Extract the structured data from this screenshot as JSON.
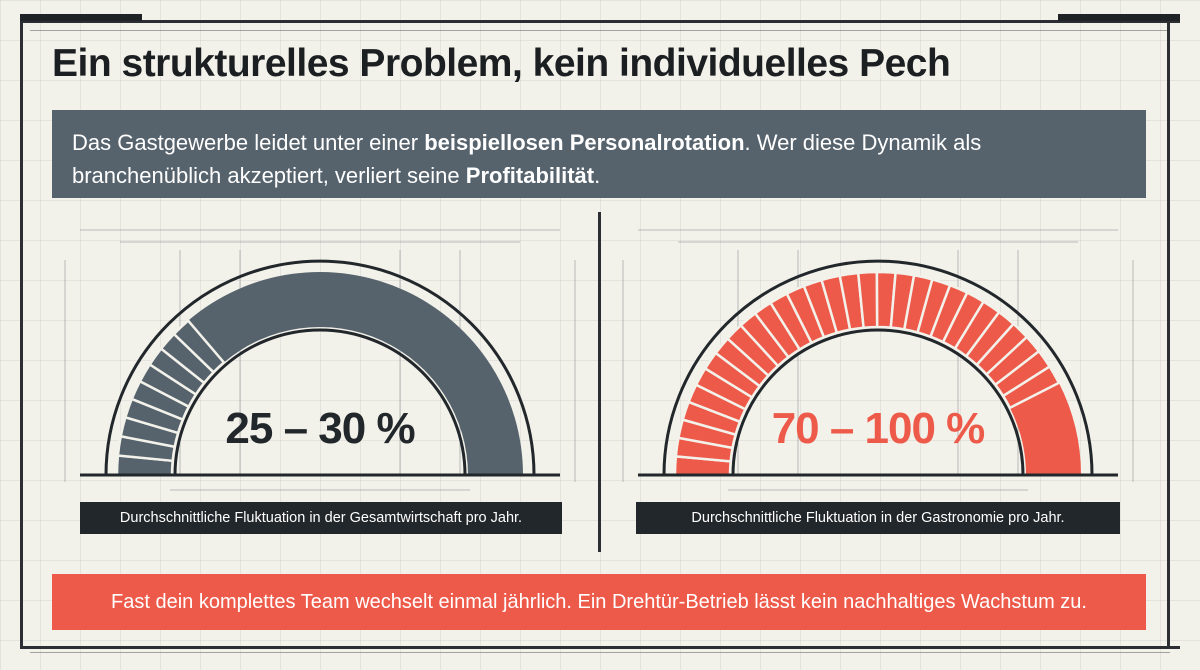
{
  "title": "Ein strukturelles Problem, kein individuelles Pech",
  "intro": {
    "part1": "Das Gastgewerbe leidet unter einer ",
    "bold1": "beispiellosen Personalrotation",
    "part2": ". Wer diese Dynamik als branchenüblich akzeptiert, verliert seine ",
    "bold2": "Profitabilität",
    "part3": "."
  },
  "chart_data": [
    {
      "type": "gauge",
      "value_label": "25 – 30 %",
      "range": [
        25,
        30
      ],
      "scale": [
        0,
        100
      ],
      "caption": "Durchschnittliche Fluktuation in der Gesamtwirtschaft pro Jahr.",
      "color": "#56636d"
    },
    {
      "type": "gauge",
      "value_label": "70 – 100 %",
      "range": [
        70,
        100
      ],
      "scale": [
        0,
        100
      ],
      "caption": "Durchschnittliche Fluktuation in der Gastronomie pro Jahr.",
      "color": "#ee5a4a"
    }
  ],
  "banner": "Fast dein komplettes Team wechselt einmal jährlich. Ein Drehtür-Betrieb lässt kein nachhaltiges Wachstum zu.",
  "colors": {
    "background": "#f2f1ea",
    "slate": "#56636d",
    "coral": "#ee5a4a",
    "dark": "#22272b"
  }
}
